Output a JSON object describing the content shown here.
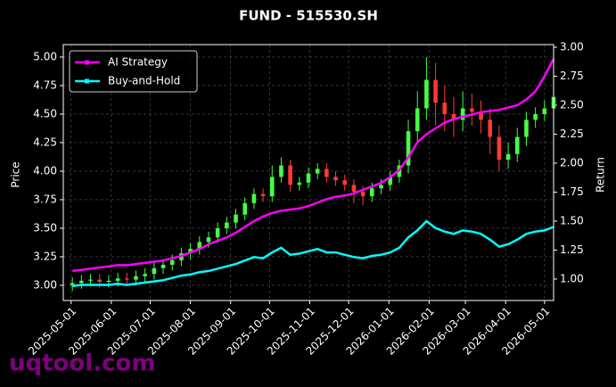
{
  "chart_data": {
    "type": "candlestick",
    "title": "FUND - 515530.SH",
    "ylabel": "Price",
    "y2label": "Return",
    "watermark": "uqtool.com",
    "x": [
      "2025-05-02",
      "2025-05-09",
      "2025-05-16",
      "2025-05-23",
      "2025-05-30",
      "2025-06-06",
      "2025-06-13",
      "2025-06-20",
      "2025-06-27",
      "2025-07-04",
      "2025-07-11",
      "2025-07-18",
      "2025-07-25",
      "2025-08-01",
      "2025-08-08",
      "2025-08-15",
      "2025-08-22",
      "2025-08-29",
      "2025-09-05",
      "2025-09-12",
      "2025-09-19",
      "2025-09-26",
      "2025-10-03",
      "2025-10-10",
      "2025-10-17",
      "2025-10-24",
      "2025-10-31",
      "2025-11-07",
      "2025-11-14",
      "2025-11-21",
      "2025-11-28",
      "2025-12-05",
      "2025-12-12",
      "2025-12-19",
      "2025-12-26",
      "2026-01-02",
      "2026-01-09",
      "2026-01-16",
      "2026-01-23",
      "2026-01-30",
      "2026-02-06",
      "2026-02-13",
      "2026-02-20",
      "2026-02-27",
      "2026-03-06",
      "2026-03-13",
      "2026-03-20",
      "2026-03-27",
      "2026-04-03",
      "2026-04-10",
      "2026-04-17",
      "2026-04-24",
      "2026-05-01",
      "2026-05-08"
    ],
    "open": [
      3.0,
      3.02,
      3.04,
      3.05,
      3.03,
      3.04,
      3.06,
      3.05,
      3.08,
      3.1,
      3.15,
      3.18,
      3.22,
      3.28,
      3.32,
      3.38,
      3.42,
      3.5,
      3.55,
      3.62,
      3.72,
      3.8,
      3.78,
      3.95,
      4.05,
      3.88,
      3.9,
      3.98,
      4.02,
      3.95,
      3.92,
      3.88,
      3.82,
      3.78,
      3.85,
      3.88,
      3.95,
      4.05,
      4.35,
      4.55,
      4.8,
      4.6,
      4.5,
      4.45,
      4.55,
      4.52,
      4.45,
      4.3,
      4.1,
      4.15,
      4.3,
      4.45,
      4.5,
      4.55
    ],
    "high": [
      3.07,
      3.09,
      3.1,
      3.1,
      3.09,
      3.11,
      3.11,
      3.13,
      3.15,
      3.2,
      3.23,
      3.27,
      3.33,
      3.37,
      3.43,
      3.47,
      3.55,
      3.6,
      3.67,
      3.77,
      3.85,
      3.85,
      4.05,
      4.12,
      4.1,
      3.95,
      4.03,
      4.07,
      4.07,
      4.0,
      3.97,
      3.93,
      3.87,
      3.9,
      3.93,
      4.0,
      4.1,
      4.45,
      4.7,
      5.0,
      4.95,
      4.75,
      4.65,
      4.7,
      4.68,
      4.62,
      4.55,
      4.4,
      4.25,
      4.38,
      4.52,
      4.56,
      4.62,
      4.72
    ],
    "low": [
      2.95,
      2.97,
      2.99,
      2.98,
      2.98,
      2.99,
      3.0,
      3.0,
      3.03,
      3.05,
      3.1,
      3.13,
      3.17,
      3.23,
      3.27,
      3.33,
      3.37,
      3.45,
      3.5,
      3.57,
      3.67,
      3.73,
      3.73,
      3.9,
      3.82,
      3.83,
      3.85,
      3.93,
      3.9,
      3.87,
      3.83,
      3.72,
      3.7,
      3.73,
      3.8,
      3.83,
      3.9,
      3.98,
      4.25,
      4.45,
      4.4,
      4.35,
      4.3,
      4.35,
      4.4,
      4.33,
      4.15,
      4.0,
      4.02,
      4.08,
      4.22,
      4.38,
      4.44,
      4.48
    ],
    "close": [
      3.02,
      3.04,
      3.05,
      3.03,
      3.04,
      3.06,
      3.05,
      3.08,
      3.1,
      3.15,
      3.18,
      3.22,
      3.28,
      3.32,
      3.38,
      3.42,
      3.5,
      3.55,
      3.62,
      3.72,
      3.8,
      3.78,
      3.95,
      4.05,
      3.88,
      3.9,
      3.98,
      4.02,
      3.95,
      3.92,
      3.88,
      3.82,
      3.78,
      3.85,
      3.88,
      3.95,
      4.05,
      4.35,
      4.55,
      4.8,
      4.6,
      4.5,
      4.45,
      4.55,
      4.52,
      4.45,
      4.3,
      4.1,
      4.15,
      4.3,
      4.45,
      4.5,
      4.55,
      4.65
    ],
    "up_color": "#44ff44",
    "down_color": "#ff3b30",
    "series": [
      {
        "name": "AI Strategy",
        "color": "#ff00ff",
        "axis": "y2",
        "values": [
          1.07,
          1.08,
          1.09,
          1.1,
          1.11,
          1.12,
          1.12,
          1.13,
          1.14,
          1.15,
          1.16,
          1.18,
          1.2,
          1.23,
          1.26,
          1.3,
          1.33,
          1.36,
          1.4,
          1.45,
          1.5,
          1.54,
          1.57,
          1.59,
          1.6,
          1.61,
          1.63,
          1.66,
          1.69,
          1.71,
          1.72,
          1.74,
          1.77,
          1.8,
          1.83,
          1.88,
          1.94,
          2.05,
          2.18,
          2.25,
          2.3,
          2.35,
          2.38,
          2.4,
          2.42,
          2.44,
          2.45,
          2.46,
          2.48,
          2.5,
          2.55,
          2.62,
          2.75,
          2.9
        ]
      },
      {
        "name": "Buy-and-Hold",
        "color": "#00ffff",
        "axis": "y2",
        "values": [
          0.94,
          0.95,
          0.95,
          0.95,
          0.95,
          0.96,
          0.95,
          0.96,
          0.97,
          0.98,
          0.99,
          1.01,
          1.03,
          1.04,
          1.06,
          1.07,
          1.09,
          1.11,
          1.13,
          1.16,
          1.19,
          1.18,
          1.23,
          1.27,
          1.21,
          1.22,
          1.24,
          1.26,
          1.23,
          1.23,
          1.21,
          1.19,
          1.18,
          1.2,
          1.21,
          1.23,
          1.27,
          1.36,
          1.42,
          1.5,
          1.44,
          1.41,
          1.39,
          1.42,
          1.41,
          1.39,
          1.34,
          1.28,
          1.3,
          1.34,
          1.39,
          1.41,
          1.42,
          1.45
        ]
      }
    ],
    "xlim": [
      "2025-04-25",
      "2026-05-08"
    ],
    "xticks": [
      "2025-05-01",
      "2025-06-01",
      "2025-07-01",
      "2025-08-01",
      "2025-09-01",
      "2025-10-01",
      "2025-11-01",
      "2025-12-01",
      "2026-01-01",
      "2026-02-01",
      "2026-03-01",
      "2026-04-01",
      "2026-05-01"
    ],
    "ylim": [
      2.867,
      5.109
    ],
    "yticks": [
      {
        "value": 3,
        "label": "3.00"
      },
      {
        "value": 3.25,
        "label": "3.25"
      },
      {
        "value": 3.5,
        "label": "3.50"
      },
      {
        "value": 3.75,
        "label": "3.75"
      },
      {
        "value": 4,
        "label": "4.00"
      },
      {
        "value": 4.25,
        "label": "4.25"
      },
      {
        "value": 4.5,
        "label": "4.50"
      },
      {
        "value": 4.75,
        "label": "4.75"
      },
      {
        "value": 5,
        "label": "5.00"
      }
    ],
    "y2lim": [
      0.815,
      3.023
    ],
    "y2ticks": [
      {
        "value": 1,
        "label": "1.00"
      },
      {
        "value": 1.25,
        "label": "1.25"
      },
      {
        "value": 1.5,
        "label": "1.50"
      },
      {
        "value": 1.75,
        "label": "1.75"
      },
      {
        "value": 2,
        "label": "2.00"
      },
      {
        "value": 2.25,
        "label": "2.25"
      },
      {
        "value": 2.5,
        "label": "2.50"
      },
      {
        "value": 2.75,
        "label": "2.75"
      },
      {
        "value": 3,
        "label": "3.00"
      }
    ],
    "grid": true,
    "legend": "upper left"
  }
}
